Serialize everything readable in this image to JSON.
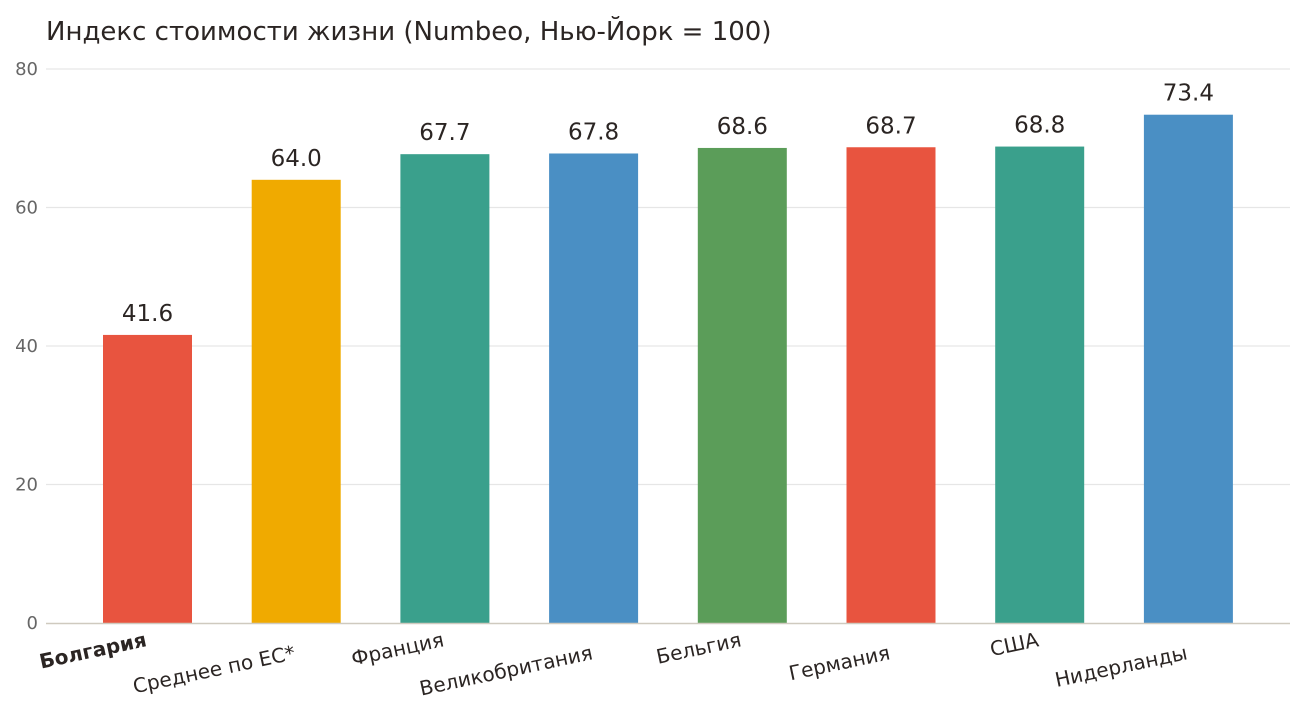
{
  "chart_data": {
    "type": "bar",
    "title": "Индекс стоимости жизни (Numbeo, Нью-Йорк = 100)",
    "xlabel": "",
    "ylabel": "",
    "ylim": [
      0,
      80
    ],
    "yticks": [
      0,
      20,
      40,
      60,
      80
    ],
    "grid": true,
    "legend": "none",
    "categories": [
      "Болгария",
      "Среднее по ЕС*",
      "Франция",
      "Великобритания",
      "Бельгия",
      "Германия",
      "США",
      "Нидерланды"
    ],
    "values": [
      41.6,
      64.0,
      67.7,
      67.8,
      68.6,
      68.7,
      68.8,
      73.4
    ],
    "value_labels": [
      "41.6",
      "64.0",
      "67.7",
      "67.8",
      "68.6",
      "68.7",
      "68.8",
      "73.4"
    ],
    "colors": [
      "#e8543f",
      "#f0aa00",
      "#3aa08c",
      "#4a8fc4",
      "#5b9d59",
      "#e8543f",
      "#3aa08c",
      "#4a8fc4"
    ],
    "highlighted_category": "Болгария"
  }
}
